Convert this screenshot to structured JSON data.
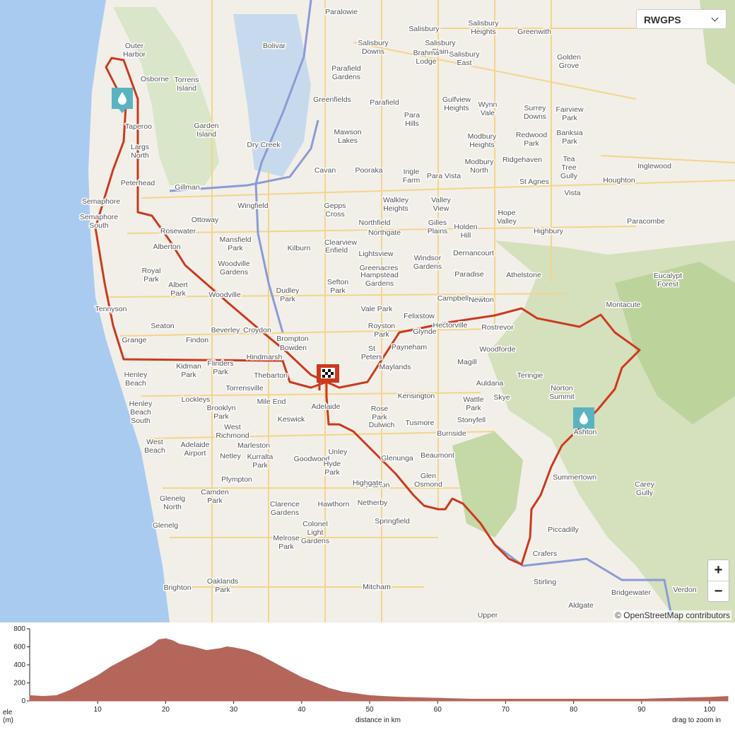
{
  "map": {
    "layer_select": "RWGPS",
    "zoom_in": "+",
    "zoom_out": "−",
    "attribution": "© OpenStreetMap contributors",
    "labels": [
      "Paralowie",
      "Salisbury",
      "Salisbury Heights",
      "Greenwith",
      "Outer Harbor",
      "Bolivar",
      "Salisbury Downs",
      "Salisbury Plain",
      "Brahma Lodge",
      "Salisbury East",
      "Golden Grove",
      "Osborne",
      "Torrens Island",
      "Parafield Gardens",
      "Greenfields",
      "Parafield",
      "Para Hills",
      "Gulfview Heights",
      "Wynn Vale",
      "Surrey Downs",
      "Fairview Park",
      "Taperoo",
      "Garden Island",
      "Mawson Lakes",
      "Modbury Heights",
      "Redwood Park",
      "Banksia Park",
      "Largs North",
      "Dry Creek",
      "Cavan",
      "Pooraka",
      "Ingle Farm",
      "Para Vista",
      "Modbury North",
      "Ridgehaven",
      "Tea Tree Gully",
      "Inglewood",
      "St Agnes",
      "Houghton",
      "Peterhead",
      "Gillman",
      "Wingfield",
      "Gepps Cross",
      "Walkley Heights",
      "Valley View",
      "Vista",
      "Semaphore",
      "Semaphore South",
      "Ottoway",
      "Northfield",
      "Northgate",
      "Gilles Plains",
      "Holden Hill",
      "Hope Valley",
      "Paracombe",
      "Rosewater",
      "Mansfield Park",
      "Kilburn",
      "Clearview",
      "Enfield",
      "Lightsview",
      "Windsor Gardens",
      "Dernancourt",
      "Highbury",
      "Alberton",
      "Woodville Gardens",
      "Greenacres",
      "Hampstead Gardens",
      "Athelstone",
      "Paradise",
      "Eucalypt Forest",
      "Royal Park",
      "Albert Park",
      "Dudley Park",
      "Sefton Park",
      "Campbelltown",
      "Newton",
      "Montacute",
      "Woodville",
      "Tennyson",
      "Seaton",
      "Grange",
      "Findon",
      "Beverley",
      "Croydon",
      "Brompton",
      "Hindmarsh",
      "Bowden",
      "Vale Park",
      "Felixstow",
      "Glynde",
      "Hectorville",
      "Rostrevor",
      "Royston Park",
      "St Peters",
      "Payneham",
      "Maylands",
      "Magill",
      "Woodforde",
      "Teringie",
      "Auldana",
      "Skye",
      "Wattle Park",
      "Norton Summit",
      "Henley Beach",
      "Kidman Park",
      "Flinders Park",
      "Thebarton",
      "Torrensville",
      "Lockleys",
      "Mile End",
      "Adelaide",
      "Kensington",
      "Stonyfell",
      "Rose Park",
      "Dulwich",
      "Tusmore",
      "Burnside",
      "Ashton",
      "Henley Beach South",
      "Brooklyn Park",
      "Keswick",
      "West Richmond",
      "Marleston",
      "West Beach",
      "Adelaide Airport",
      "Netley",
      "Kurralta Park",
      "Goodwood",
      "Unley",
      "Hyde Park",
      "Glenunga",
      "Beaumont",
      "Fullarton",
      "Highgate",
      "Glen Osmond",
      "Summertown",
      "Carey Gully",
      "Plympton",
      "Camden Park",
      "Glenelg North",
      "Glenelg",
      "Piccadilly",
      "Crafers",
      "Stirling",
      "Bridgewater",
      "Verdon",
      "Aldgate",
      "Upper",
      "Springfield",
      "Hawthorn",
      "Netherby",
      "Colonel Light Gardens",
      "Mitcham",
      "Melrose Park",
      "Clarence Gardens",
      "Oaklands Park",
      "Brighton"
    ]
  },
  "chart_data": {
    "type": "area",
    "ylabel": "ele",
    "ylabel_unit": "(m)",
    "xlabel": "distance in km",
    "note": "drag to zoom in",
    "color": "#b5665a",
    "x": [
      0,
      2,
      4,
      6,
      8,
      10,
      12,
      14,
      16,
      18,
      19,
      20,
      21,
      22,
      24,
      26,
      28,
      29,
      30,
      32,
      34,
      36,
      38,
      40,
      42,
      44,
      46,
      48,
      50,
      52,
      55,
      60,
      65,
      70,
      75,
      80,
      85,
      90,
      95,
      100,
      102.7
    ],
    "values": [
      60,
      50,
      60,
      120,
      200,
      280,
      380,
      460,
      540,
      620,
      680,
      690,
      670,
      630,
      600,
      560,
      580,
      600,
      590,
      560,
      500,
      420,
      340,
      260,
      200,
      140,
      100,
      80,
      60,
      50,
      40,
      30,
      20,
      20,
      20,
      20,
      20,
      20,
      30,
      40,
      50
    ],
    "xlim": [
      0,
      102.7
    ],
    "ylim": [
      0,
      800
    ],
    "xticks": [
      10,
      20,
      30,
      40,
      50,
      60,
      70,
      80,
      90,
      100
    ],
    "yticks": [
      0,
      200,
      400,
      600,
      800
    ]
  }
}
